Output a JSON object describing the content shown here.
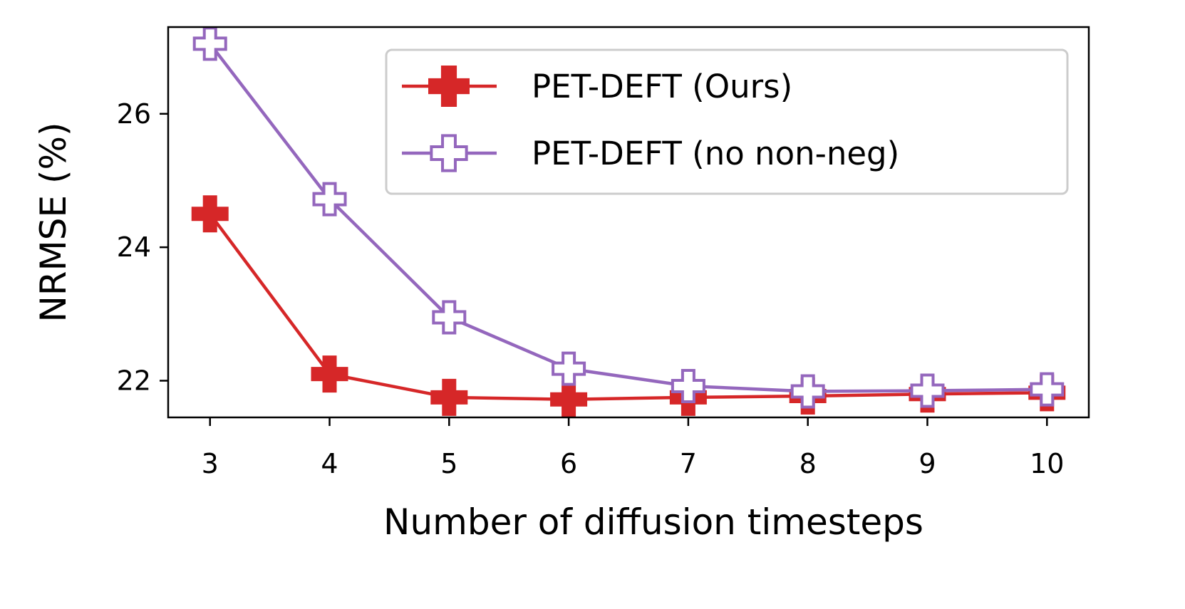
{
  "chart_data": {
    "type": "line",
    "xlabel": "Number of diffusion timesteps",
    "ylabel": "NRMSE (%)",
    "x": [
      3,
      4,
      5,
      6,
      7,
      8,
      9,
      10
    ],
    "xlim": [
      2.65,
      10.35
    ],
    "ylim": [
      21.45,
      27.3
    ],
    "xticks": [
      3,
      4,
      5,
      6,
      7,
      8,
      9,
      10
    ],
    "yticks": [
      22,
      24,
      26
    ],
    "grid": false,
    "legend_position": "top-right",
    "series": [
      {
        "name": "PET-DEFT (Ours)",
        "color": "#d62728",
        "marker": "filled-plus",
        "values": [
          24.5,
          22.1,
          21.75,
          21.72,
          21.75,
          21.77,
          21.8,
          21.82
        ]
      },
      {
        "name": "PET-DEFT (no non-neg)",
        "color": "#9467bd",
        "marker": "hollow-plus",
        "values": [
          27.05,
          24.72,
          22.95,
          22.18,
          21.92,
          21.84,
          21.85,
          21.87
        ]
      }
    ]
  }
}
